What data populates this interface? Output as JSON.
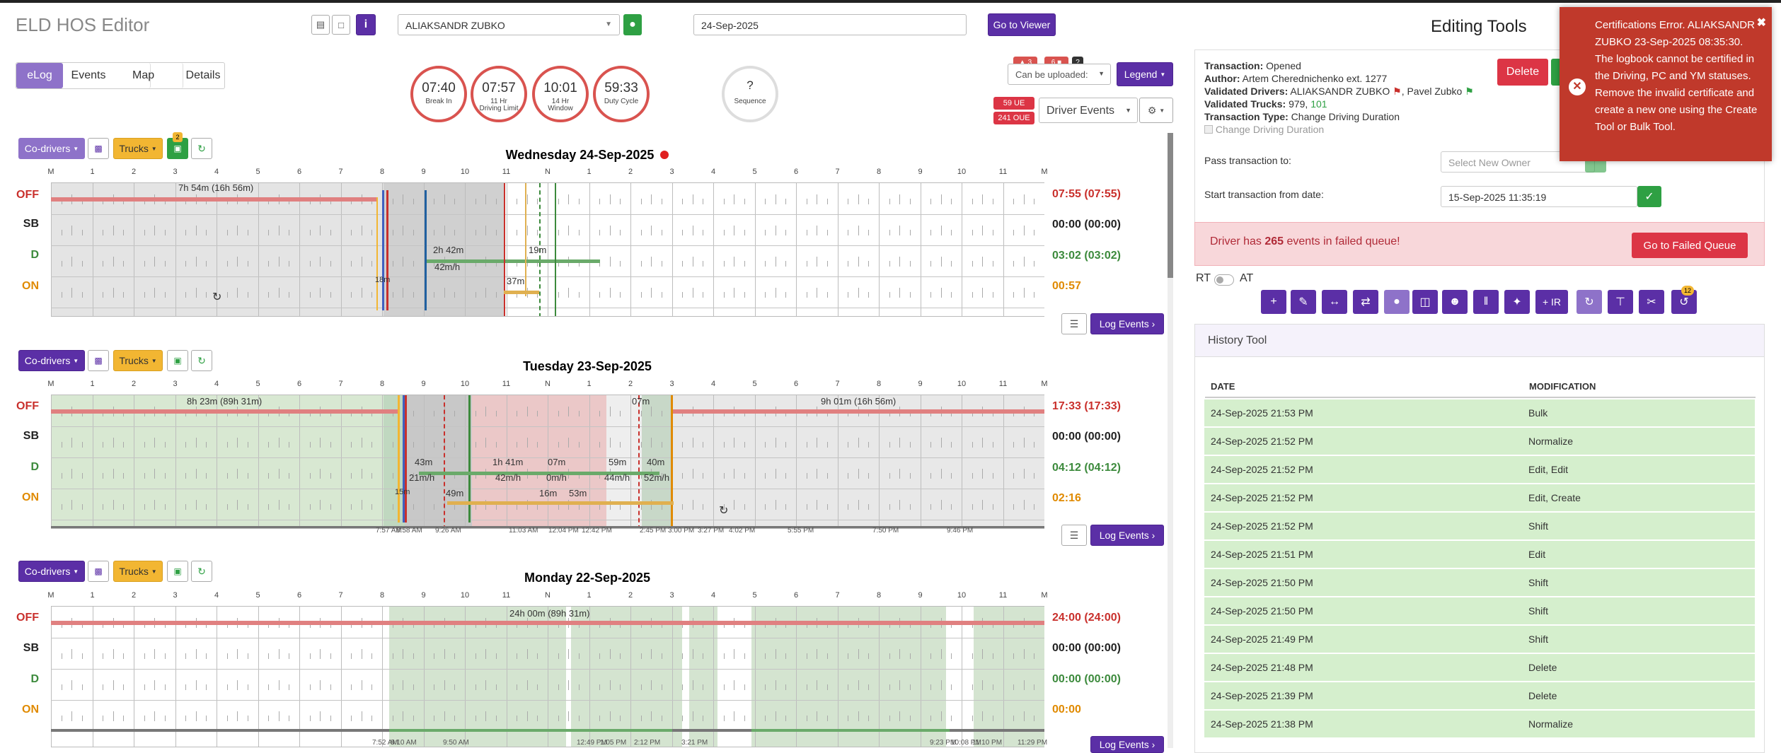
{
  "app": {
    "title": "ELD HOS Editor"
  },
  "header": {
    "driver_select": "ALIAKSANDR ZUBKO",
    "date": "24-Sep-2025",
    "go_viewer": "Go to Viewer",
    "editing_tools": "Editing Tools"
  },
  "tabs": [
    "eLog",
    "Events",
    "Map",
    "Details"
  ],
  "gauges": [
    {
      "value": "07:40",
      "label": "Break In"
    },
    {
      "value": "07:57",
      "label": "11 Hr\nDriving Limit"
    },
    {
      "value": "10:01",
      "label": "14 Hr\nWindow"
    },
    {
      "value": "59:33",
      "label": "Duty Cycle"
    }
  ],
  "sequence": {
    "value": "?",
    "label": "Sequence"
  },
  "badges": {
    "a": "3",
    "b": "6",
    "q": "?",
    "ue": "59 UE",
    "oue": "241 OUE"
  },
  "uploaded_select": "Can be uploaded:",
  "legend_btn": "Legend",
  "driver_events_select": "Driver Events",
  "controls": {
    "codrivers": "Co-drivers",
    "trucks": "Trucks",
    "log_events": "Log Events",
    "notif": "2"
  },
  "hours": [
    "M",
    "1",
    "2",
    "3",
    "4",
    "5",
    "6",
    "7",
    "8",
    "9",
    "10",
    "11",
    "N",
    "1",
    "2",
    "3",
    "4",
    "5",
    "6",
    "7",
    "8",
    "9",
    "10",
    "11",
    "M"
  ],
  "status_labels": [
    "OFF",
    "SB",
    "D",
    "ON"
  ],
  "days": [
    {
      "title": "Wednesday 24-Sep-2025",
      "totals": [
        "07:55 (07:55)",
        "00:00 (00:00)",
        "03:02 (03:02)",
        "00:57"
      ],
      "annotations": [
        "7h 54m (16h 56m)",
        "2h 42m",
        "42m/h",
        "19m",
        "37m",
        "18m"
      ],
      "ticks": []
    },
    {
      "title": "Tuesday 23-Sep-2025",
      "totals": [
        "17:33 (17:33)",
        "00:00 (00:00)",
        "04:12 (04:12)",
        "02:16"
      ],
      "annotations": [
        "8h 23m (89h 31m)",
        "07m",
        "9h 01m (16h 56m)",
        "43m",
        "21m/h",
        "1h 41m",
        "42m/h",
        "07m",
        "0m/h",
        "59m",
        "44m/h",
        "40m",
        "52m/h",
        "49m",
        "16m",
        "53m",
        "15m"
      ],
      "ticks": [
        "7:57 AM",
        "8:58 AM",
        "9:26 AM",
        "11:03 AM",
        "12:04 PM",
        "12:42 PM",
        "2:45 PM",
        "3:00 PM",
        "3:27 PM",
        "4:02 PM",
        "5:55 PM",
        "7:50 PM",
        "9:46 PM"
      ]
    },
    {
      "title": "Monday 22-Sep-2025",
      "totals": [
        "24:00 (24:00)",
        "00:00 (00:00)",
        "00:00 (00:00)",
        "00:00"
      ],
      "annotations": [
        "24h 00m (89h 31m)"
      ],
      "ticks": [
        "7:52 AM",
        "8:10 AM",
        "9:50 AM",
        "12:49 PM",
        "1:05 PM",
        "2:12 PM",
        "3:21 PM",
        "9:23 PM",
        "10:08 PM",
        "11:10 PM",
        "11:29 PM"
      ]
    }
  ],
  "transaction": {
    "transaction_label": "Transaction:",
    "transaction_value": "Opened",
    "author_label": "Author:",
    "author_value": "Artem Cherednichenko ext. 1277",
    "vdrivers_label": "Validated Drivers:",
    "vdrivers_value1": "ALIAKSANDR ZUBKO",
    "vdrivers_value2": ", Pavel Zubko",
    "vtrucks_label": "Validated Trucks:",
    "vtrucks_value1": "979, ",
    "vtrucks_value2": "101",
    "ttype_label": "Transaction Type:",
    "ttype_value": "Change Driving Duration",
    "checkbox_label": "Change Driving Duration",
    "delete_btn": "Delete",
    "pass_label": "Pass transaction to:",
    "pass_placeholder": "Select New Owner",
    "start_label": "Start transaction from date:",
    "start_value": "15-Sep-2025 11:35:19"
  },
  "failed_queue": {
    "pre": "Driver has ",
    "count": "265",
    "post": " events in failed queue!",
    "button": "Go to Failed Queue"
  },
  "rt_at": {
    "rt": "RT",
    "at": "AT"
  },
  "tool_badge": "12",
  "history": {
    "title": "History Tool",
    "col_date": "DATE",
    "col_mod": "MODIFICATION",
    "rows": [
      {
        "date": "24-Sep-2025 21:53 PM",
        "mod": "Bulk"
      },
      {
        "date": "24-Sep-2025 21:52 PM",
        "mod": "Normalize"
      },
      {
        "date": "24-Sep-2025 21:52 PM",
        "mod": "Edit, Edit"
      },
      {
        "date": "24-Sep-2025 21:52 PM",
        "mod": "Edit, Create"
      },
      {
        "date": "24-Sep-2025 21:52 PM",
        "mod": "Shift"
      },
      {
        "date": "24-Sep-2025 21:51 PM",
        "mod": "Edit"
      },
      {
        "date": "24-Sep-2025 21:50 PM",
        "mod": "Shift"
      },
      {
        "date": "24-Sep-2025 21:50 PM",
        "mod": "Shift"
      },
      {
        "date": "24-Sep-2025 21:49 PM",
        "mod": "Shift"
      },
      {
        "date": "24-Sep-2025 21:48 PM",
        "mod": "Delete"
      },
      {
        "date": "24-Sep-2025 21:39 PM",
        "mod": "Delete"
      },
      {
        "date": "24-Sep-2025 21:38 PM",
        "mod": "Normalize"
      }
    ]
  },
  "toast": {
    "text": "Certifications Error. ALIAKSANDR ZUBKO 23-Sep-2025 08:35:30. The logbook cannot be certified in the Driving, PC and YM statuses. Remove the invalid certificate and create a new one using the Create Tool or Bulk Tool."
  },
  "colors": {
    "accent": "#5b2fa6",
    "off": "#c9302c",
    "sb": "#333333",
    "d": "#3c8a3c",
    "on": "#e08a00",
    "toast": "#c0392b"
  }
}
